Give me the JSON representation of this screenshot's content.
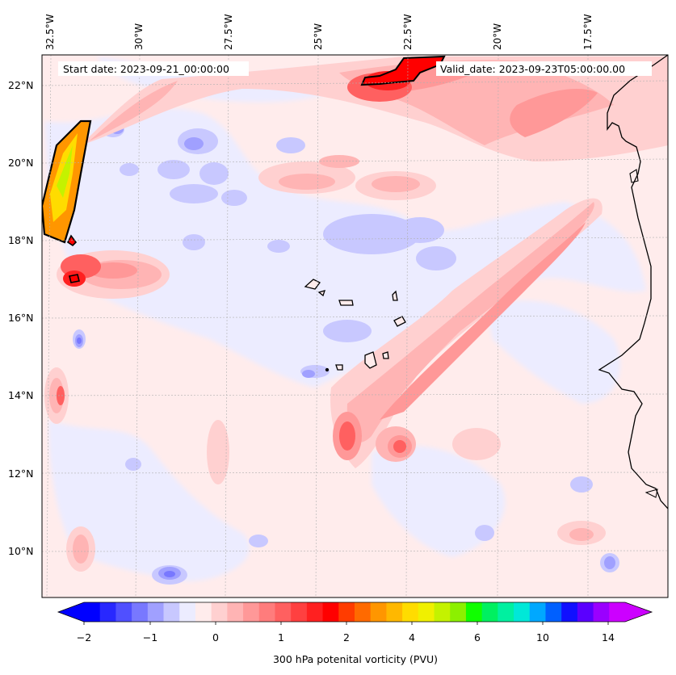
{
  "map": {
    "start_label": "Start date: 2023-09-21_00:00:00",
    "valid_label": "Valid_date: 2023-09-23T05:00:00.00",
    "lon_labels": [
      "32.5°W",
      "30°W",
      "27.5°W",
      "25°W",
      "22.5°W",
      "20°W",
      "17.5°W"
    ],
    "lat_labels": [
      "22°N",
      "20°N",
      "18°N",
      "16°N",
      "14°N",
      "12°N",
      "10°N"
    ],
    "islands": [
      "Cape Verde Islands"
    ],
    "coast": "West African coastline"
  },
  "colorbar": {
    "label": "300 hPa potenital vorticity (PVU)",
    "ticks": [
      "−2",
      "−1",
      "0",
      "1",
      "2",
      "4",
      "6",
      "10",
      "14"
    ],
    "colors": [
      "#0000ff",
      "#2828ff",
      "#5050ff",
      "#7878ff",
      "#a0a0ff",
      "#c8c8ff",
      "#ececff",
      "#ffecec",
      "#ffd0d0",
      "#ffb4b4",
      "#ff9898",
      "#ff7c7c",
      "#ff6060",
      "#ff4040",
      "#ff2020",
      "#ff0000",
      "#ff3c00",
      "#ff6a00",
      "#ff9600",
      "#ffb800",
      "#ffdc00",
      "#f0f000",
      "#c4f200",
      "#8cf000",
      "#10ff00",
      "#00f060",
      "#00f0a0",
      "#00e8d8",
      "#00a8ff",
      "#0060ff",
      "#1010ff",
      "#5a00ff",
      "#9a00ff",
      "#cc00ff"
    ],
    "under_color": "#0000ff",
    "over_color": "#cc00ff"
  }
}
